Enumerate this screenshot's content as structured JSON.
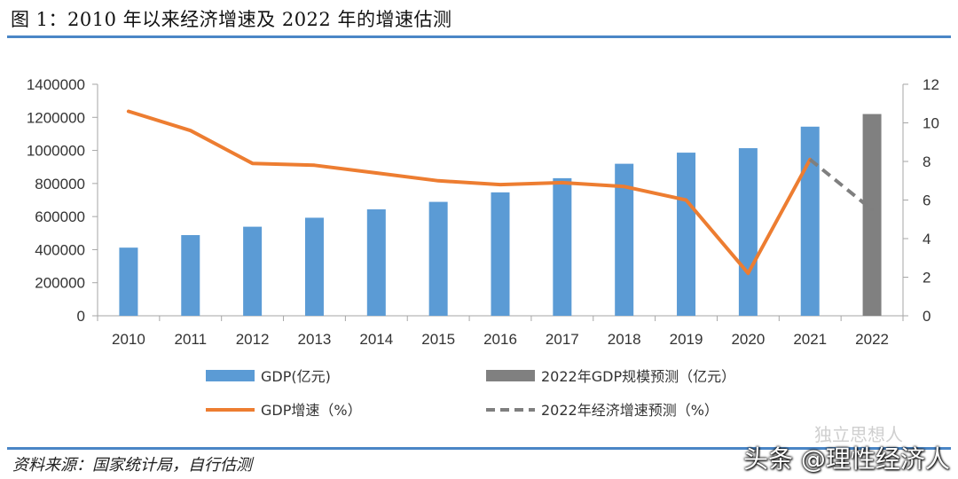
{
  "page": {
    "title": "图 1：2010 年以来经济增速及 2022 年的增速估测",
    "source": "资料来源：国家统计局，自行估测",
    "watermark_small": "独立思想人",
    "watermark_large": "头条 @理性经济人"
  },
  "colors": {
    "gdp_bar": "#5b9bd5",
    "gdp_forecast_bar": "#808080",
    "growth_line": "#ed7d31",
    "growth_forecast_line": "#7f7f7f",
    "rule": "#4a86c6"
  },
  "chart_data": {
    "type": "bar",
    "title": "图 1：2010 年以来经济增速及 2022 年的增速估测",
    "categories": [
      "2010",
      "2011",
      "2012",
      "2013",
      "2014",
      "2015",
      "2016",
      "2017",
      "2018",
      "2019",
      "2020",
      "2021",
      "2022"
    ],
    "y_left": {
      "ylim": [
        0,
        1400000
      ],
      "ticks": [
        "0",
        "200000",
        "400000",
        "600000",
        "800000",
        "1000000",
        "1200000",
        "1400000"
      ]
    },
    "y_right": {
      "ylim": [
        0,
        12
      ],
      "ticks": [
        "0",
        "2",
        "4",
        "6",
        "8",
        "10",
        "12"
      ]
    },
    "series": [
      {
        "name": "GDP(亿元)",
        "kind": "bar",
        "axis": "left",
        "values": [
          412119,
          487940,
          538580,
          592963,
          643563,
          688858,
          746395,
          832036,
          919281,
          986515,
          1013567,
          1143670,
          null
        ]
      },
      {
        "name": "2022年GDP规模预测（亿元）",
        "kind": "bar",
        "axis": "left",
        "values": [
          null,
          null,
          null,
          null,
          null,
          null,
          null,
          null,
          null,
          null,
          null,
          null,
          1220000
        ]
      },
      {
        "name": "GDP增速（%）",
        "kind": "line",
        "axis": "right",
        "values": [
          10.6,
          9.6,
          7.9,
          7.8,
          7.4,
          7.0,
          6.8,
          6.9,
          6.7,
          6.0,
          2.2,
          8.1,
          null
        ]
      },
      {
        "name": "2022年经济增速预测（%）",
        "kind": "line-dashed",
        "axis": "right",
        "values": [
          null,
          null,
          null,
          null,
          null,
          null,
          null,
          null,
          null,
          null,
          null,
          8.1,
          5.5
        ]
      }
    ],
    "legend": [
      {
        "label": "GDP(亿元)"
      },
      {
        "label": "2022年GDP规模预测（亿元）"
      },
      {
        "label": "GDP增速（%）"
      },
      {
        "label": "2022年经济增速预测（%）"
      }
    ],
    "grid": false,
    "legend_position": "bottom"
  }
}
